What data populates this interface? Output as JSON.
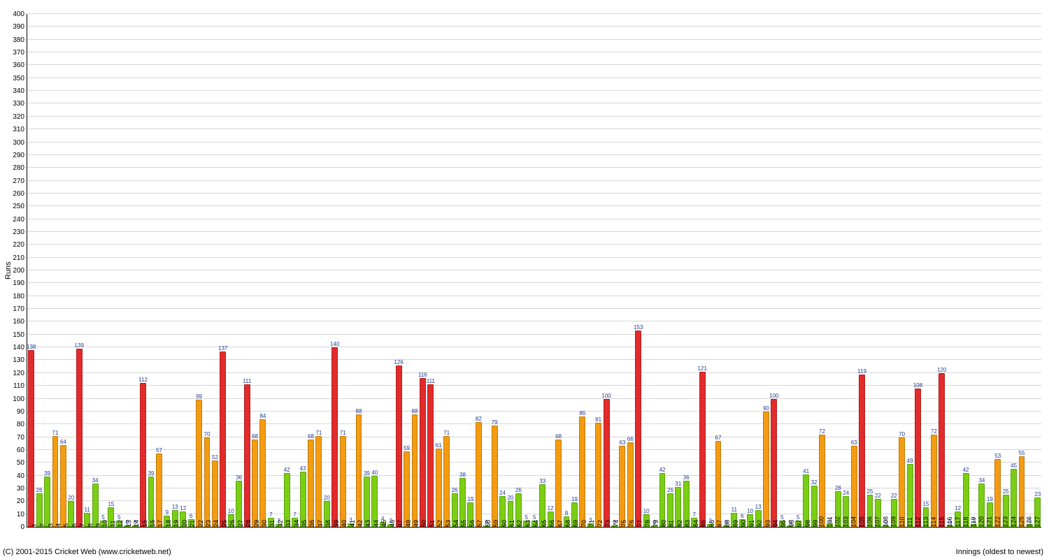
{
  "chart": {
    "type": "bar",
    "ylabel": "Runs",
    "xlabel": "Innings (oldest to newest)",
    "copyright": "(C) 2001-2015 Cricket Web (www.cricketweb.net)",
    "ylim": [
      0,
      400
    ],
    "ytick_step": 10,
    "ylabel_fontsize": 11,
    "tick_fontsize": 10,
    "bar_label_fontsize": 8,
    "bar_label_color": "#1f3a93",
    "background_color": "#ffffff",
    "grid_color": "#d7d7d7",
    "axis_color": "#000000",
    "colors": {
      "low": {
        "fill": "#7cce15",
        "border": "#5aa50f"
      },
      "mid": {
        "fill": "#f39c12",
        "border": "#c17b0e"
      },
      "high": {
        "fill": "#e22b2b",
        "border": "#b31f1f"
      }
    },
    "thresholds": {
      "mid": 50,
      "high": 100
    },
    "values": [
      138,
      26,
      39,
      71,
      64,
      20,
      139,
      11,
      34,
      5,
      15,
      5,
      0,
      0,
      112,
      39,
      57,
      9,
      13,
      12,
      6,
      99,
      70,
      52,
      137,
      10,
      36,
      111,
      68,
      84,
      7,
      2,
      42,
      7,
      43,
      68,
      71,
      20,
      140,
      71,
      3,
      88,
      39,
      40,
      4,
      2,
      126,
      59,
      88,
      116,
      111,
      61,
      71,
      26,
      38,
      19,
      82,
      0,
      79,
      24,
      20,
      26,
      5,
      5,
      33,
      12,
      68,
      8,
      19,
      86,
      3,
      81,
      100,
      0,
      63,
      66,
      153,
      10,
      0,
      42,
      26,
      31,
      36,
      7,
      121,
      2,
      67,
      0,
      11,
      6,
      10,
      13,
      90,
      100,
      5,
      0,
      5,
      41,
      32,
      72,
      3,
      28,
      24,
      63,
      119,
      25,
      22,
      0,
      22,
      70,
      49,
      108,
      15,
      72,
      120,
      0,
      12,
      42,
      2,
      34,
      19,
      53,
      25,
      45,
      55,
      2,
      23
    ]
  }
}
